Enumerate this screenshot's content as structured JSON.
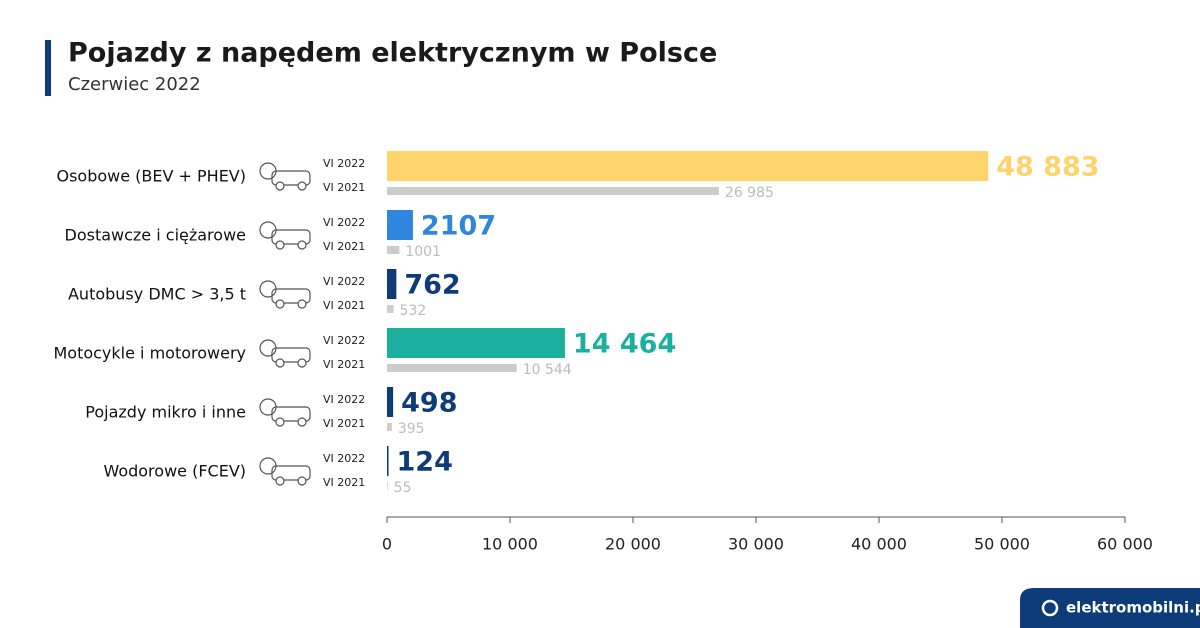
{
  "chart_data": {
    "type": "hbar",
    "title": "Pojazdy z napędem elektrycznym w Polsce",
    "subtitle": "Czerwiec 2022",
    "categories": [
      "Osobowe (BEV + PHEV)",
      "Dostawcze i ciężarowe",
      "Autobusy DMC > 3,5 t",
      "Motocykle i motorowery",
      "Pojazdy mikro i inne",
      "Wodorowe (FCEV)"
    ],
    "series": [
      {
        "name": "VI 2022",
        "colors": [
          "#fdd46b",
          "#2e86de",
          "#0d3c78",
          "#1aaf9e",
          "#0d3c78",
          "#0d3c78"
        ],
        "values": [
          48883,
          2107,
          762,
          14464,
          498,
          124
        ],
        "value_labels": [
          "48 883",
          "2107",
          "762",
          "14 464",
          "498",
          "124"
        ]
      },
      {
        "name": "VI 2021",
        "color": "#cccccc",
        "values": [
          26985,
          1001,
          532,
          10544,
          395,
          55
        ],
        "value_labels": [
          "26 985",
          "1001",
          "532",
          "10 544",
          "395",
          "55"
        ]
      }
    ],
    "xlim": [
      0,
      60000
    ],
    "xticks": [
      0,
      {
        "value": 10000,
        "label": "10 000"
      },
      {
        "value": 20000,
        "label": "20 000"
      },
      {
        "value": 30000,
        "label": "30 000"
      },
      {
        "value": 40000,
        "label": "40 000"
      },
      {
        "value": 50000,
        "label": "50 000"
      },
      {
        "value": 60000,
        "label": "60 000"
      }
    ]
  },
  "brand": "elektromobilni.pl"
}
